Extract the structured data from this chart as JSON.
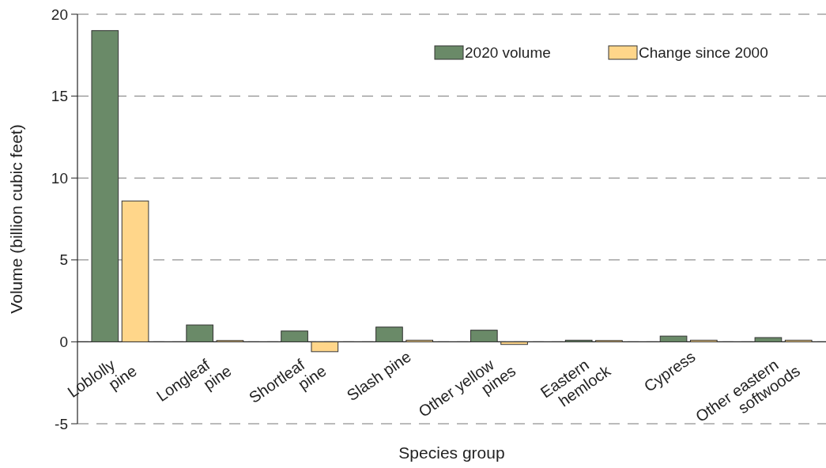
{
  "chart_data": {
    "type": "bar",
    "xlabel": "Species group",
    "ylabel": "Volume (billion cubic feet)",
    "categories": [
      "Loblolly\npine",
      "Longleaf\npine",
      "Shortleaf\npine",
      "Slash pine",
      "Other yellow\npines",
      "Eastern\nhemlock",
      "Cypress",
      "Other eastern\nsoftwoods"
    ],
    "series": [
      {
        "name": "2020 volume",
        "color": "#6a8a68",
        "values": [
          19.0,
          1.03,
          0.66,
          0.9,
          0.71,
          0.1,
          0.35,
          0.26
        ]
      },
      {
        "name": "Change since 2000",
        "color": "#ffd68a",
        "values": [
          8.6,
          0.08,
          -0.6,
          0.1,
          -0.16,
          0.08,
          0.1,
          0.1
        ]
      }
    ],
    "ylim": [
      -5,
      20
    ],
    "yticks": [
      -5,
      0,
      5,
      10,
      15,
      20
    ],
    "grid": "y",
    "legend": "top right"
  }
}
